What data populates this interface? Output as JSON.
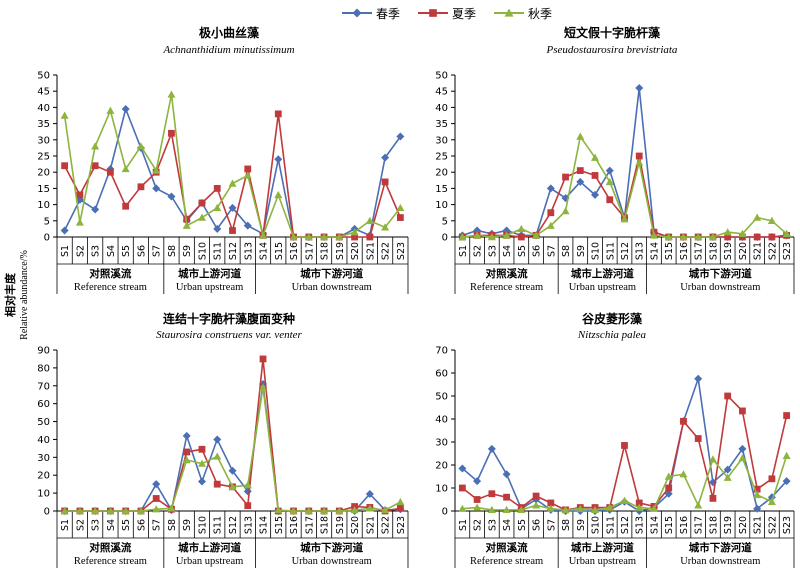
{
  "legend": {
    "items": [
      {
        "name": "春季",
        "color": "#4a6fb5",
        "marker": "diamond"
      },
      {
        "name": "夏季",
        "color": "#c0393b",
        "marker": "square"
      },
      {
        "name": "秋季",
        "color": "#8db43e",
        "marker": "triangle"
      }
    ]
  },
  "ylabel_cn": "相对丰度",
  "ylabel_en": "Relative abundance/%",
  "chart_data": [
    {
      "type": "line",
      "title": "极小曲丝藻",
      "subtitle": "Achnanthidium minutissimum",
      "ylim": [
        0,
        50
      ],
      "yticks": [
        "0",
        "5",
        "10",
        "15",
        "20",
        "25",
        "30",
        "35",
        "40",
        "45",
        "50"
      ],
      "categories": [
        "S1",
        "S2",
        "S3",
        "S4",
        "S5",
        "S6",
        "S7",
        "S8",
        "S9",
        "S10",
        "S11",
        "S12",
        "S13",
        "S14",
        "S15",
        "S16",
        "S17",
        "S18",
        "S19",
        "S20",
        "S21",
        "S22",
        "S23"
      ],
      "groups": [
        {
          "cn": "对照溪流",
          "en": "Reference stream"
        },
        {
          "cn": "城市上游河道",
          "en": "Urban upstream"
        },
        {
          "cn": "城市下游河道",
          "en": "Urban downstream"
        }
      ],
      "series": [
        {
          "name": "春季",
          "values": [
            2,
            11.5,
            8.5,
            21,
            39.5,
            27.5,
            15,
            12.5,
            5,
            10.5,
            2.5,
            9,
            3.5,
            1,
            24,
            0,
            0,
            0,
            0,
            2.5,
            0.5,
            24.5,
            31
          ]
        },
        {
          "name": "夏季",
          "values": [
            22,
            13,
            22,
            20,
            9.5,
            15.5,
            20,
            32,
            5.5,
            10.5,
            15,
            2,
            21,
            0.5,
            38,
            0,
            0,
            0,
            0,
            0,
            0,
            17,
            6
          ]
        },
        {
          "name": "秋季",
          "values": [
            37.5,
            4.5,
            28,
            39,
            21,
            28,
            20.5,
            44,
            3.5,
            6,
            9,
            16.5,
            19,
            0.5,
            13,
            0,
            0,
            0,
            0,
            1.5,
            5,
            3,
            9
          ]
        }
      ]
    },
    {
      "type": "line",
      "title": "短文假十字脆杆藻",
      "subtitle": "Pseudostaurosira brevistriata",
      "ylim": [
        0,
        50
      ],
      "yticks": [
        "0",
        "5",
        "10",
        "15",
        "20",
        "25",
        "30",
        "35",
        "40",
        "45",
        "50"
      ],
      "categories": [
        "S1",
        "S2",
        "S3",
        "S4",
        "S5",
        "S6",
        "S7",
        "S8",
        "S9",
        "S10",
        "S11",
        "S12",
        "S13",
        "S14",
        "S15",
        "S16",
        "S17",
        "S18",
        "S19",
        "S20",
        "S21",
        "S22",
        "S23"
      ],
      "groups": [
        {
          "cn": "对照溪流",
          "en": "Reference stream"
        },
        {
          "cn": "城市上游河道",
          "en": "Urban upstream"
        },
        {
          "cn": "城市下游河道",
          "en": "Urban downstream"
        }
      ],
      "series": [
        {
          "name": "春季",
          "values": [
            0.5,
            2,
            1,
            2,
            0.5,
            0.5,
            15,
            12,
            17,
            13,
            20.5,
            6,
            46,
            1.5,
            0,
            0,
            0,
            0,
            0,
            0,
            0,
            0,
            0.5
          ]
        },
        {
          "name": "夏季",
          "values": [
            0,
            0.5,
            0.5,
            0.5,
            0,
            0.5,
            7.5,
            18.5,
            20.5,
            19,
            11.5,
            6,
            25,
            1.5,
            0,
            0,
            0,
            0,
            0,
            0,
            0,
            0,
            0.5
          ]
        },
        {
          "name": "秋季",
          "values": [
            0,
            0.5,
            0,
            0.5,
            2.5,
            0.5,
            3.5,
            8,
            31,
            24.5,
            17,
            5.5,
            23,
            0.5,
            0,
            0,
            0,
            0,
            1.5,
            1,
            6,
            5,
            1
          ]
        }
      ]
    },
    {
      "type": "line",
      "title": "连结十字脆杆藻腹面变种",
      "subtitle": "Staurosira construens var. venter",
      "ylim": [
        0,
        90
      ],
      "yticks": [
        "0",
        "10",
        "20",
        "30",
        "40",
        "50",
        "60",
        "70",
        "80",
        "90"
      ],
      "categories": [
        "S1",
        "S2",
        "S3",
        "S4",
        "S5",
        "S6",
        "S7",
        "S8",
        "S9",
        "S10",
        "S11",
        "S12",
        "S13",
        "S14",
        "S15",
        "S16",
        "S17",
        "S18",
        "S19",
        "S20",
        "S21",
        "S22",
        "S23"
      ],
      "groups": [
        {
          "cn": "对照溪流",
          "en": "Reference stream"
        },
        {
          "cn": "城市上游河道",
          "en": "Urban upstream"
        },
        {
          "cn": "城市下游河道",
          "en": "Urban downstream"
        }
      ],
      "series": [
        {
          "name": "春季",
          "values": [
            0,
            0,
            0,
            0,
            0,
            0,
            15,
            0.5,
            42,
            16.5,
            40,
            22.5,
            11,
            71,
            0,
            0,
            0,
            0,
            0,
            0,
            9.5,
            0.5,
            1
          ]
        },
        {
          "name": "夏季",
          "values": [
            0,
            0,
            0,
            0,
            0,
            0,
            7,
            1,
            33,
            34.5,
            15,
            13.5,
            3,
            85,
            0,
            0,
            0,
            0,
            0,
            2.5,
            2,
            0,
            1.5
          ]
        },
        {
          "name": "秋季",
          "values": [
            0,
            0,
            0,
            0,
            0,
            0,
            1,
            1.5,
            28.5,
            26.5,
            30.5,
            13.5,
            14.5,
            69,
            0.5,
            0,
            0,
            0,
            0,
            0.5,
            1.5,
            0.5,
            5
          ]
        }
      ]
    },
    {
      "type": "line",
      "title": "谷皮菱形藻",
      "subtitle": "Nitzschia palea",
      "ylim": [
        0,
        70
      ],
      "yticks": [
        "0",
        "10",
        "20",
        "30",
        "40",
        "50",
        "60",
        "70"
      ],
      "categories": [
        "S1",
        "S2",
        "S3",
        "S4",
        "S5",
        "S6",
        "S7",
        "S8",
        "S9",
        "S10",
        "S11",
        "S12",
        "S13",
        "S14",
        "S15",
        "S16",
        "S17",
        "S18",
        "S19",
        "S20",
        "S21",
        "S22",
        "S23"
      ],
      "groups": [
        {
          "cn": "对照溪流",
          "en": "Reference stream"
        },
        {
          "cn": "城市上游河道",
          "en": "Urban upstream"
        },
        {
          "cn": "城市下游河道",
          "en": "Urban downstream"
        }
      ],
      "series": [
        {
          "name": "春季",
          "values": [
            18.5,
            13,
            27,
            16,
            1,
            5,
            0.5,
            0,
            0,
            0,
            0.5,
            4,
            0,
            1.5,
            7.5,
            39,
            57.5,
            12.5,
            18,
            27,
            1,
            6,
            13
          ]
        },
        {
          "name": "夏季",
          "values": [
            10,
            5,
            7.5,
            6,
            1.5,
            6.5,
            3.5,
            0.5,
            1.5,
            1.5,
            1.5,
            28.5,
            3.5,
            2,
            10,
            39,
            31.5,
            5.5,
            50,
            43.5,
            9.5,
            14,
            41.5
          ]
        },
        {
          "name": "秋季",
          "values": [
            1,
            1.5,
            0.5,
            0.5,
            0.5,
            2.5,
            1,
            0.5,
            1,
            0.5,
            1.5,
            4.5,
            1.5,
            1,
            15,
            16,
            2.5,
            22.5,
            14.5,
            23,
            7,
            4,
            24
          ]
        }
      ]
    }
  ]
}
